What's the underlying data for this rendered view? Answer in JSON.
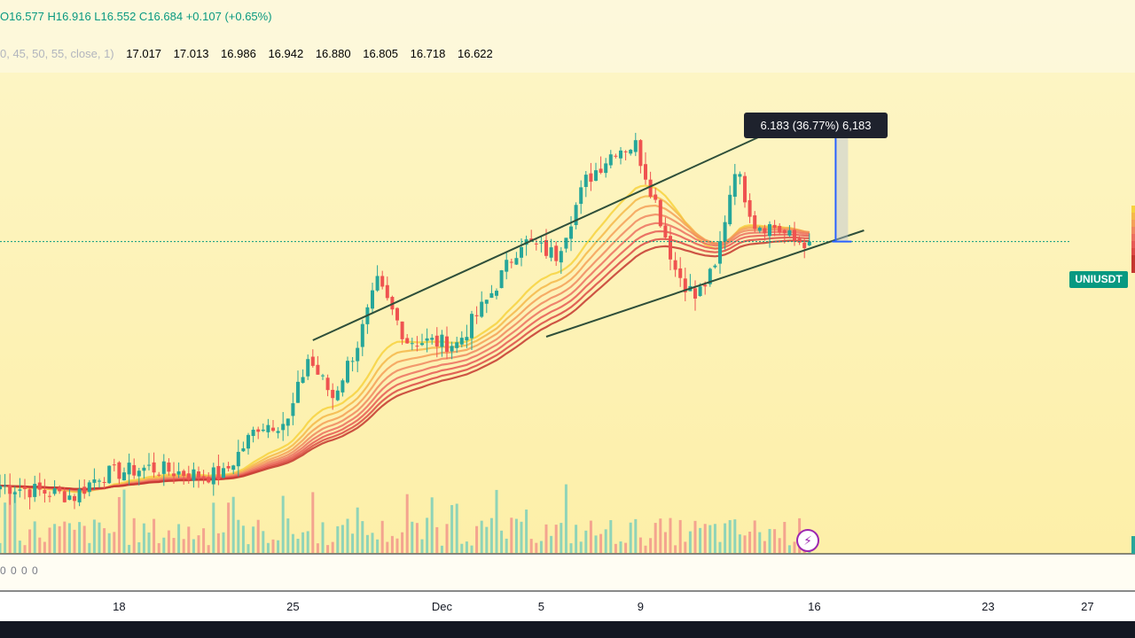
{
  "legend": {
    "open_label": "O",
    "open": "16.577",
    "high_label": "H",
    "high": "16.916",
    "low_label": "L",
    "low": "16.552",
    "close_label": "C",
    "close": "16.684",
    "change": "+0.107 (+0.65%)"
  },
  "ribbon": {
    "params": "0, 45, 50, 55, close, 1)",
    "values": [
      "17.017",
      "17.013",
      "16.986",
      "16.942",
      "16.880",
      "16.805",
      "16.718",
      "16.622"
    ],
    "colors": [
      "#f7d23e",
      "#f5b94a",
      "#f4a058",
      "#f08860",
      "#ec7060",
      "#e65a55",
      "#dc4a45",
      "#c4372f"
    ]
  },
  "measure": {
    "label": "6.183 (36.77%) 6,183"
  },
  "symbol": {
    "name": "UNIUSDT",
    "current_price": 16.684
  },
  "sub_pane": {
    "values_text": "0 0 0 0"
  },
  "time_axis": {
    "ticks": [
      {
        "label": "18",
        "x_index": 24
      },
      {
        "label": "25",
        "x_index": 59
      },
      {
        "label": "Dec",
        "x_index": 89
      },
      {
        "label": "5",
        "x_index": 109
      },
      {
        "label": "9",
        "x_index": 129
      },
      {
        "label": "16",
        "x_index": 164
      },
      {
        "label": "23",
        "x_index": 199
      },
      {
        "label": "27",
        "x_index": 219
      }
    ]
  },
  "colors": {
    "up": "#26a69a",
    "down": "#ef5350",
    "vol_up": "#8fd4b8",
    "vol_down": "#f4a48f",
    "trendline": "#2f4f3a",
    "measure_arrow": "#2962ff",
    "price_line": "#089981"
  },
  "chart_data": {
    "type": "candlestick",
    "title": "",
    "symbol": "UNIUSDT",
    "price_range": [
      8.5,
      21.0
    ],
    "current_close": 16.684,
    "measured_move": {
      "change": 6.183,
      "percent": 36.77
    },
    "ohlc_last": {
      "open": 16.577,
      "high": 16.916,
      "low": 16.552,
      "close": 16.684
    },
    "ribbon_latest": [
      17.017,
      17.013,
      16.986,
      16.942,
      16.88,
      16.805,
      16.718,
      16.622
    ],
    "close_anchors": [
      [
        0,
        9.8
      ],
      [
        10,
        9.6
      ],
      [
        15,
        9.5
      ],
      [
        20,
        10.1
      ],
      [
        30,
        10.3
      ],
      [
        40,
        10.1
      ],
      [
        45,
        10.1
      ],
      [
        52,
        11.5
      ],
      [
        58,
        11.6
      ],
      [
        62,
        13.4
      ],
      [
        67,
        12.3
      ],
      [
        72,
        13.8
      ],
      [
        76,
        15.5
      ],
      [
        82,
        13.9
      ],
      [
        92,
        13.8
      ],
      [
        98,
        15.0
      ],
      [
        105,
        16.7
      ],
      [
        112,
        16.3
      ],
      [
        118,
        18.4
      ],
      [
        124,
        19.3
      ],
      [
        128,
        19.4
      ],
      [
        132,
        17.8
      ],
      [
        136,
        15.9
      ],
      [
        140,
        15.1
      ],
      [
        144,
        15.9
      ],
      [
        148,
        18.8
      ],
      [
        152,
        17.2
      ],
      [
        156,
        17.1
      ],
      [
        160,
        16.7
      ],
      [
        163,
        16.68
      ]
    ],
    "candle_count": 164,
    "upper_trendline": [
      [
        63,
        13.9
      ],
      [
        157,
        19.9
      ]
    ],
    "lower_trendline": [
      [
        110,
        14.0
      ],
      [
        174,
        17.0
      ]
    ]
  }
}
